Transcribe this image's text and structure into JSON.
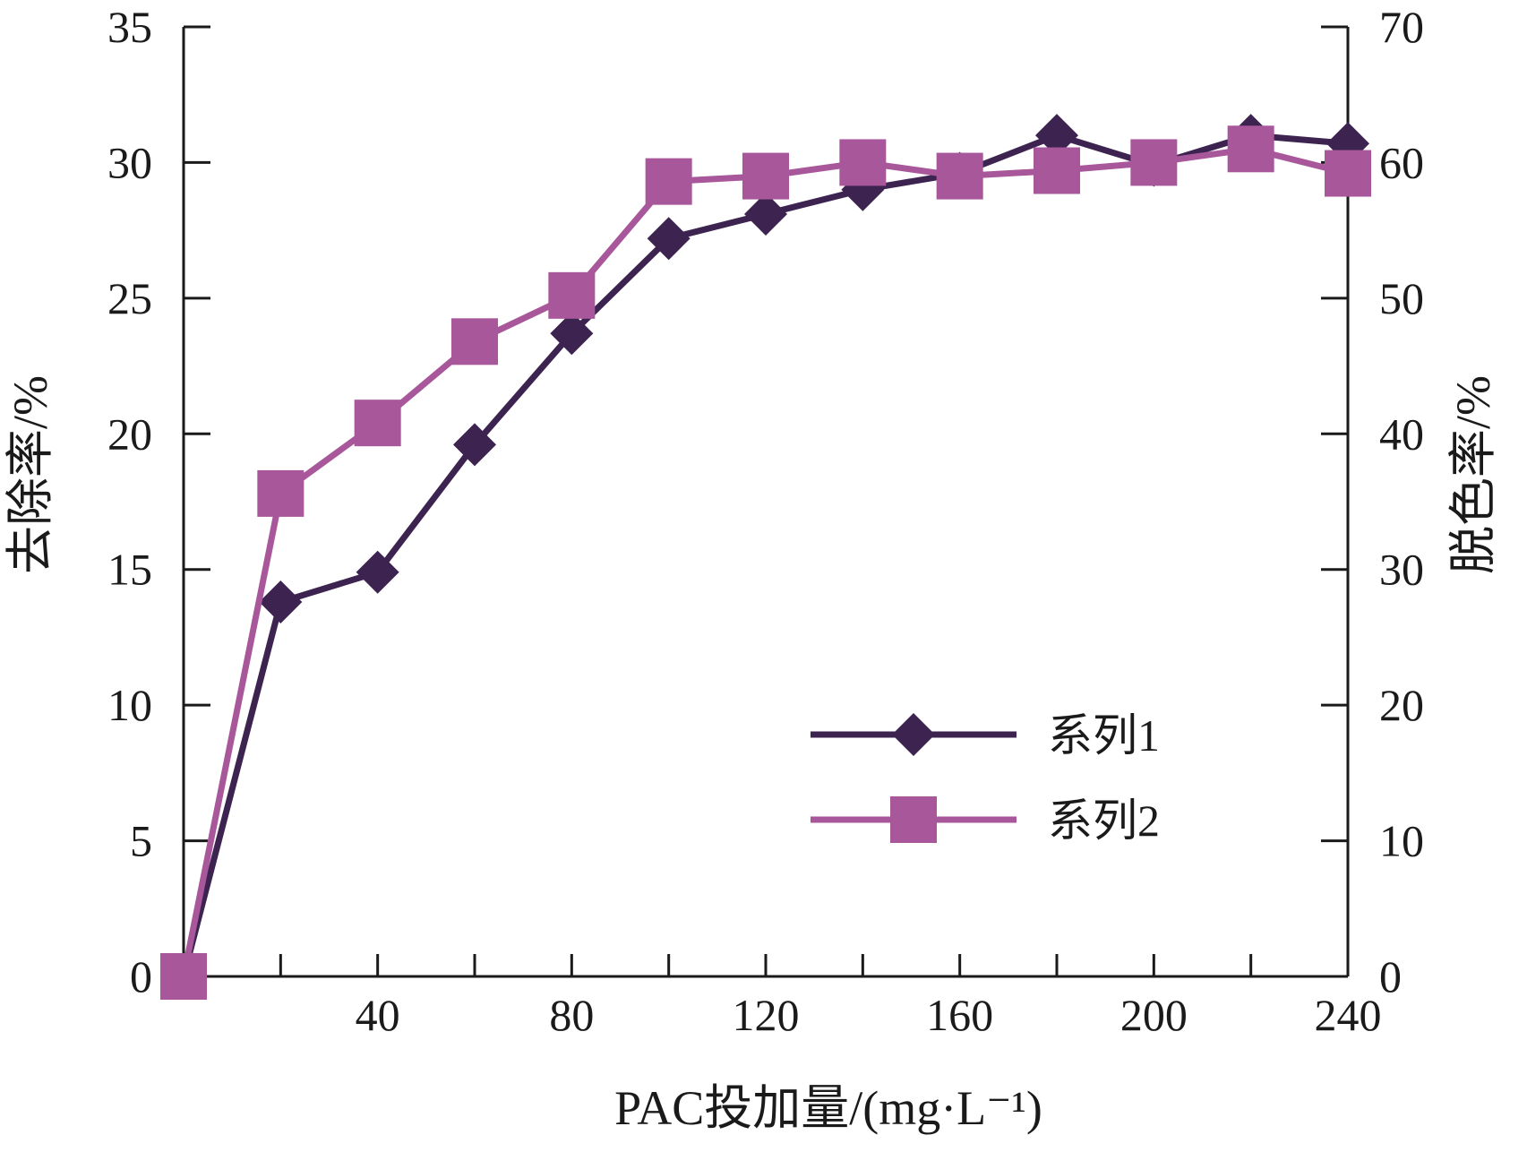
{
  "chart_data": {
    "type": "line",
    "xlabel": "PAC投加量/(mg·L⁻¹)",
    "ylabel_left": "去除率/%",
    "ylabel_right": "脱色率/%",
    "xlim": [
      0,
      240
    ],
    "ylim_left": [
      0,
      35
    ],
    "ylim_right": [
      0,
      70
    ],
    "x_ticks": [
      20,
      40,
      60,
      80,
      100,
      120,
      140,
      160,
      180,
      200,
      220,
      240
    ],
    "x_tick_labels": [
      "40",
      "80",
      "120",
      "160",
      "200",
      "240"
    ],
    "x_tick_label_values": [
      40,
      80,
      120,
      160,
      200,
      240
    ],
    "y_left_ticks": [
      "0",
      "5",
      "10",
      "15",
      "20",
      "25",
      "30",
      "35"
    ],
    "y_left_tick_values": [
      0,
      5,
      10,
      15,
      20,
      25,
      30,
      35
    ],
    "y_right_ticks": [
      "0",
      "10",
      "20",
      "30",
      "40",
      "50",
      "60",
      "70"
    ],
    "y_right_tick_values": [
      0,
      10,
      20,
      30,
      40,
      50,
      60,
      70
    ],
    "legend_position": "lower-right",
    "grid": false,
    "series": [
      {
        "name": "系列1",
        "axis": "left",
        "color": "#3d2350",
        "marker": "diamond",
        "x": [
          0,
          20,
          40,
          60,
          80,
          100,
          120,
          140,
          160,
          180,
          200,
          220,
          240
        ],
        "y": [
          0,
          13.8,
          14.9,
          19.6,
          23.7,
          27.2,
          28.1,
          29.0,
          29.6,
          31.0,
          29.9,
          31.0,
          30.7
        ]
      },
      {
        "name": "系列2",
        "axis": "right",
        "color": "#a8579a",
        "marker": "square",
        "x": [
          0,
          20,
          40,
          60,
          80,
          100,
          120,
          140,
          160,
          180,
          200,
          220,
          240
        ],
        "y": [
          0,
          35.6,
          40.8,
          46.8,
          50.2,
          58.6,
          59.0,
          60.0,
          59.0,
          59.4,
          60.0,
          61.0,
          59.2
        ]
      }
    ]
  }
}
